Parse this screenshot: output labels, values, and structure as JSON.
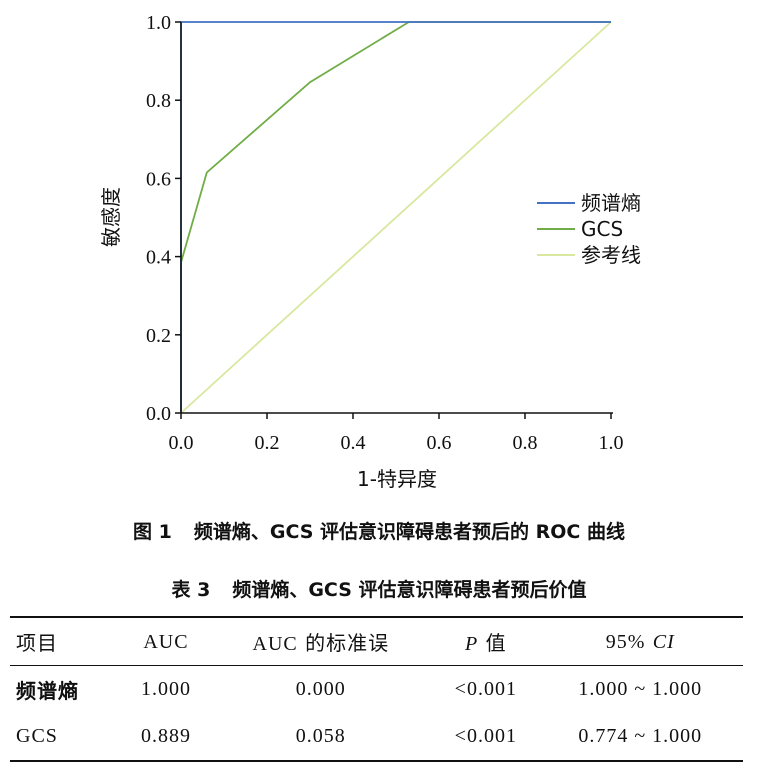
{
  "chart_data": {
    "type": "line",
    "xlabel": "1-特异度",
    "ylabel": "敏感度",
    "xlim": [
      0.0,
      1.0
    ],
    "ylim": [
      0.0,
      1.0
    ],
    "xticks": [
      "0.0",
      "0.2",
      "0.4",
      "0.6",
      "0.8",
      "1.0"
    ],
    "yticks": [
      "0.0",
      "0.2",
      "0.4",
      "0.6",
      "0.8",
      "1.0"
    ],
    "grid": false,
    "legend_position": "right",
    "series": [
      {
        "name": "频谱熵",
        "color": "#4472c4",
        "points": [
          [
            0.0,
            0.0
          ],
          [
            0.0,
            1.0
          ],
          [
            1.0,
            1.0
          ]
        ]
      },
      {
        "name": "GCS",
        "color": "#70ad47",
        "points": [
          [
            0.0,
            0.0
          ],
          [
            0.0,
            0.385
          ],
          [
            0.06,
            0.615
          ],
          [
            0.3,
            0.846
          ],
          [
            0.53,
            1.0
          ],
          [
            1.0,
            1.0
          ]
        ]
      },
      {
        "name": "参考线",
        "color": "#d8e8a0",
        "points": [
          [
            0.0,
            0.0
          ],
          [
            1.0,
            1.0
          ]
        ]
      }
    ]
  },
  "figure_caption": {
    "number": "图 1",
    "text": "频谱熵、GCS 评估意识障碍患者预后的 ROC 曲线"
  },
  "table_title": {
    "number": "表 3",
    "text": "频谱熵、GCS 评估意识障碍患者预后价值"
  },
  "table": {
    "headers": {
      "item": "项目",
      "auc": "AUC",
      "se_prefix": "AUC",
      "se_suffix": "的标准误",
      "p_letter": "P",
      "p_suffix": "值",
      "ci_prefix": "95%",
      "ci_letters": "CI"
    },
    "rows": [
      [
        "频谱熵",
        "1.000",
        "0.000",
        "<0.001",
        "1.000 ~ 1.000"
      ],
      [
        "GCS",
        "0.889",
        "0.058",
        "<0.001",
        "0.774 ~ 1.000"
      ]
    ]
  }
}
